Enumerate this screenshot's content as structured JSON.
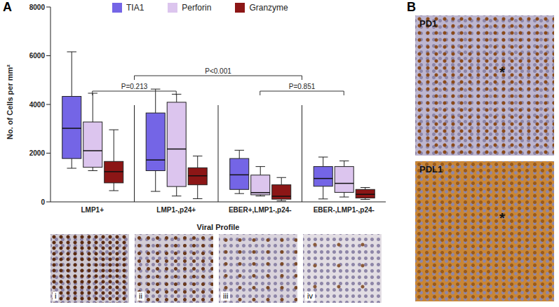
{
  "chart_data": {
    "type": "box",
    "panel_label": "A",
    "x_label": "Viral Profile",
    "y_label": "No. of Cells per mm²",
    "categories": [
      "LMP1+",
      "LMP1-,p24+",
      "EBER+,LMP1-,p24-",
      "EBER-,LMP1-,p24-"
    ],
    "series": [
      {
        "name": "TIA1",
        "color": "#7465e6",
        "values": [
          {
            "min": 1380,
            "q1": 1780,
            "median": 3020,
            "q3": 4330,
            "max": 6160
          },
          {
            "min": 430,
            "q1": 1280,
            "median": 1720,
            "q3": 3650,
            "max": 4630
          },
          {
            "min": 340,
            "q1": 510,
            "median": 1110,
            "q3": 1780,
            "max": 2120
          },
          {
            "min": 120,
            "q1": 640,
            "median": 960,
            "q3": 1450,
            "max": 1840
          }
        ]
      },
      {
        "name": "Perforin",
        "color": "#dcc5ee",
        "values": [
          {
            "min": 1280,
            "q1": 1420,
            "median": 2100,
            "q3": 3280,
            "max": 4460
          },
          {
            "min": 240,
            "q1": 630,
            "median": 2170,
            "q3": 4090,
            "max": 4420
          },
          {
            "min": 240,
            "q1": 290,
            "median": 380,
            "q3": 1100,
            "max": 1450
          },
          {
            "min": 200,
            "q1": 390,
            "median": 760,
            "q3": 1450,
            "max": 1680
          }
        ]
      },
      {
        "name": "Granzyme",
        "color": "#8c1616",
        "values": [
          {
            "min": 460,
            "q1": 780,
            "median": 1240,
            "q3": 1660,
            "max": 2960
          },
          {
            "min": 130,
            "q1": 700,
            "median": 1070,
            "q3": 1400,
            "max": 1880
          },
          {
            "min": 40,
            "q1": 110,
            "median": 230,
            "q3": 700,
            "max": 1000
          },
          {
            "min": 100,
            "q1": 160,
            "median": 310,
            "q3": 510,
            "max": 590
          }
        ]
      }
    ],
    "ylim": [
      0,
      8000
    ],
    "yticks": [
      0,
      2000,
      4000,
      6000,
      8000
    ],
    "legend": "top",
    "annotations": [
      "P=0.213",
      "P=0.851",
      "P<0.001"
    ]
  },
  "figure": {
    "image_labels": [
      "i",
      "ii",
      "iii",
      "iv"
    ],
    "panel_b": {
      "label": "B",
      "images": [
        {
          "label": "PD1",
          "annotation": "*"
        },
        {
          "label": "PDL1",
          "annotation": "*"
        }
      ]
    }
  }
}
